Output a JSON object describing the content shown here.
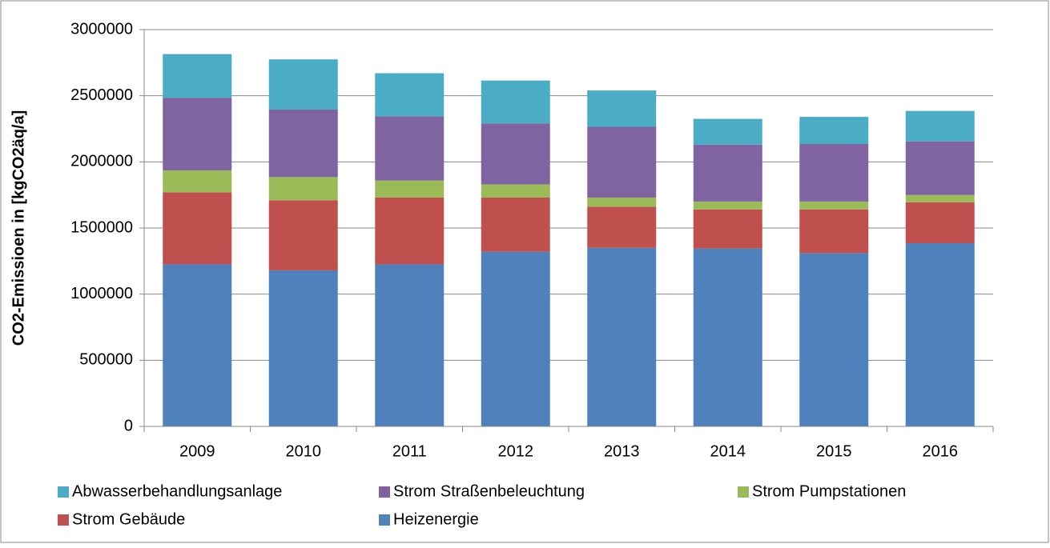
{
  "chart_data": {
    "type": "stacked_bar",
    "y_label": "CO2-Emissioen in [kgCO2äq/a]",
    "categories": [
      "2009",
      "2010",
      "2011",
      "2012",
      "2013",
      "2014",
      "2015",
      "2016"
    ],
    "series": [
      {
        "name": "Abwasserbehandlungsanlage",
        "color": "#4bacc6",
        "values": [
          330000,
          380000,
          325000,
          325000,
          275000,
          195000,
          205000,
          230000
        ]
      },
      {
        "name": "Strom Straßenbeleuchtung",
        "color": "#8064a2",
        "values": [
          550000,
          510000,
          485000,
          460000,
          535000,
          430000,
          435000,
          405000
        ]
      },
      {
        "name": "Strom Pumpstationen",
        "color": "#9bbb59",
        "values": [
          165000,
          175000,
          130000,
          100000,
          70000,
          60000,
          60000,
          55000
        ]
      },
      {
        "name": "Strom Gebäude",
        "color": "#c0504d",
        "values": [
          545000,
          530000,
          505000,
          410000,
          310000,
          295000,
          330000,
          310000
        ]
      },
      {
        "name": "Heizenergie",
        "color": "#4f81bd",
        "values": [
          1225000,
          1180000,
          1225000,
          1320000,
          1350000,
          1345000,
          1310000,
          1385000
        ]
      }
    ],
    "ylim": [
      0,
      3000000
    ],
    "yticks": [
      0,
      500000,
      1000000,
      1500000,
      2000000,
      2500000,
      3000000
    ],
    "grid": true,
    "legend": "bottom"
  }
}
